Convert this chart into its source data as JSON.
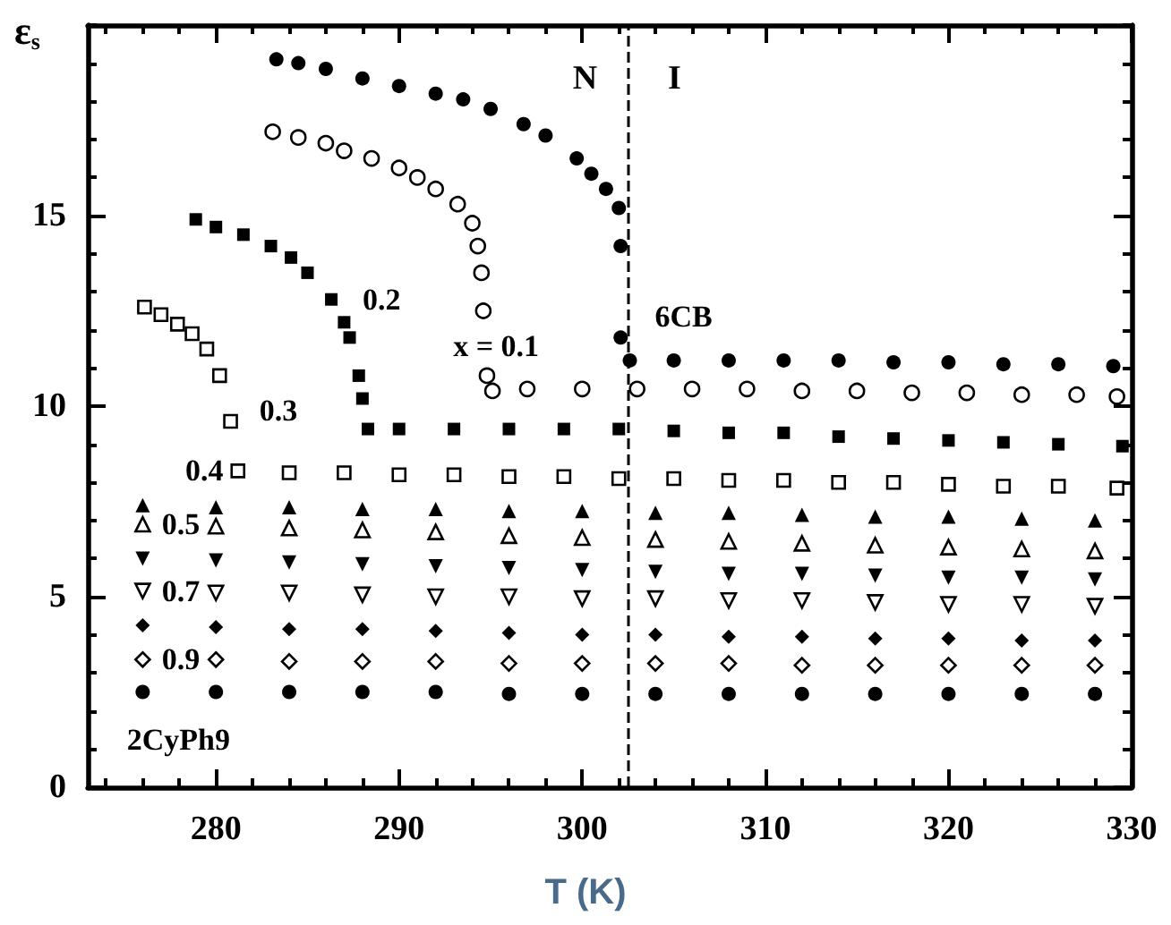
{
  "chart_data": {
    "type": "scatter",
    "xlabel": "T (K)",
    "ylabel": "ε$_{s}$",
    "xlim": [
      273,
      330
    ],
    "ylim": [
      0,
      20
    ],
    "xticks": [
      {
        "value": 274,
        "label": null
      },
      {
        "value": 276,
        "label": null
      },
      {
        "value": 278,
        "label": null
      },
      280,
      {
        "value": 282,
        "label": null
      },
      {
        "value": 284,
        "label": null
      },
      {
        "value": 286,
        "label": null
      },
      {
        "value": 288,
        "label": null
      },
      290,
      {
        "value": 292,
        "label": null
      },
      {
        "value": 294,
        "label": null
      },
      {
        "value": 296,
        "label": null
      },
      {
        "value": 298,
        "label": null
      },
      300,
      {
        "value": 302,
        "label": null
      },
      {
        "value": 304,
        "label": null
      },
      {
        "value": 306,
        "label": null
      },
      {
        "value": 308,
        "label": null
      },
      310,
      {
        "value": 312,
        "label": null
      },
      {
        "value": 314,
        "label": null
      },
      {
        "value": 316,
        "label": null
      },
      {
        "value": 318,
        "label": null
      },
      320,
      {
        "value": 322,
        "label": null
      },
      {
        "value": 324,
        "label": null
      },
      {
        "value": 326,
        "label": null
      },
      {
        "value": 328,
        "label": null
      },
      330
    ],
    "yticks": [
      0,
      {
        "value": 1,
        "label": null
      },
      {
        "value": 2,
        "label": null
      },
      {
        "value": 3,
        "label": null
      },
      {
        "value": 4,
        "label": null
      },
      5,
      {
        "value": 6,
        "label": null
      },
      {
        "value": 7,
        "label": null
      },
      {
        "value": 8,
        "label": null
      },
      {
        "value": 9,
        "label": null
      },
      10,
      {
        "value": 11,
        "label": null
      },
      {
        "value": 12,
        "label": null
      },
      {
        "value": 13,
        "label": null
      },
      {
        "value": 14,
        "label": null
      },
      15,
      {
        "value": 16,
        "label": null
      },
      {
        "value": 17,
        "label": null
      },
      {
        "value": 18,
        "label": null
      },
      {
        "value": 19,
        "label": null
      },
      {
        "value": 20,
        "label": null
      }
    ],
    "grid": false,
    "series": [
      {
        "name": "6CB",
        "color": "#000000",
        "marker": "circle",
        "x": [
          283.3,
          284.5,
          286,
          288,
          290,
          292,
          293.5,
          295,
          296.8,
          298,
          299.7,
          300.5,
          301.3,
          302,
          302.1,
          302.1,
          302.6,
          305,
          308,
          311,
          314,
          317,
          320,
          323,
          326,
          329
        ],
        "values": [
          19.1,
          19.0,
          18.85,
          18.6,
          18.4,
          18.2,
          18.05,
          17.8,
          17.4,
          17.1,
          16.5,
          16.1,
          15.7,
          15.2,
          14.2,
          11.8,
          11.2,
          11.2,
          11.2,
          11.2,
          11.2,
          11.15,
          11.15,
          11.1,
          11.1,
          11.05
        ]
      },
      {
        "name": "x = 0.1",
        "color": "#ffffff",
        "marker": "circle",
        "x": [
          283.1,
          284.5,
          286,
          287,
          288.5,
          290,
          291,
          292,
          293.2,
          294,
          294.3,
          294.5,
          294.6,
          294.8,
          295.1,
          297,
          300,
          303,
          306,
          309,
          312,
          315,
          318,
          321,
          324,
          327,
          329.2
        ],
        "values": [
          17.2,
          17.05,
          16.9,
          16.7,
          16.5,
          16.25,
          16.0,
          15.7,
          15.3,
          14.8,
          14.2,
          13.5,
          12.5,
          10.8,
          10.4,
          10.45,
          10.45,
          10.45,
          10.45,
          10.45,
          10.4,
          10.4,
          10.35,
          10.35,
          10.3,
          10.3,
          10.25
        ]
      },
      {
        "name": "0.2",
        "color": "#000000",
        "marker": "square",
        "x": [
          278.9,
          280,
          281.5,
          283,
          284.1,
          285,
          286.3,
          287,
          287.3,
          287.8,
          288,
          288.3,
          290,
          293,
          296,
          299,
          302,
          305,
          308,
          311,
          314,
          317,
          320,
          323,
          326,
          329.5
        ],
        "values": [
          14.9,
          14.7,
          14.5,
          14.2,
          13.9,
          13.5,
          12.8,
          12.2,
          11.8,
          10.8,
          10.2,
          9.4,
          9.4,
          9.4,
          9.4,
          9.4,
          9.4,
          9.35,
          9.3,
          9.3,
          9.2,
          9.15,
          9.1,
          9.05,
          9.0,
          8.95
        ]
      },
      {
        "name": "0.3",
        "color": "#ffffff",
        "marker": "square",
        "x": [
          276.1,
          277,
          277.9,
          278.7,
          279.5,
          280.2,
          280.8
        ],
        "values": [
          12.6,
          12.4,
          12.15,
          11.9,
          11.5,
          10.8,
          9.6
        ]
      },
      {
        "name": "0.4",
        "color": "#ffffff",
        "marker": "square",
        "x": [
          281.2,
          284,
          287,
          290,
          293,
          296,
          299,
          302,
          305,
          308,
          311,
          314,
          317,
          320,
          323,
          326,
          329.2
        ],
        "values": [
          8.3,
          8.25,
          8.25,
          8.2,
          8.2,
          8.15,
          8.15,
          8.1,
          8.1,
          8.05,
          8.05,
          8.0,
          8.0,
          7.95,
          7.9,
          7.9,
          7.85
        ]
      },
      {
        "color": "#000000",
        "marker": "triangle",
        "x": [
          276,
          280,
          284,
          288,
          292,
          296,
          300,
          304,
          308,
          312,
          316,
          320,
          324,
          328
        ],
        "values": [
          7.4,
          7.35,
          7.35,
          7.3,
          7.3,
          7.25,
          7.25,
          7.2,
          7.2,
          7.15,
          7.1,
          7.1,
          7.05,
          7.0
        ]
      },
      {
        "name": "0.5",
        "color": "#ffffff",
        "marker": "triangle",
        "x": [
          276,
          280,
          284,
          288,
          292,
          296,
          300,
          304,
          308,
          312,
          316,
          320,
          324,
          328
        ],
        "values": [
          6.9,
          6.85,
          6.8,
          6.75,
          6.7,
          6.6,
          6.55,
          6.5,
          6.45,
          6.4,
          6.35,
          6.3,
          6.25,
          6.2
        ]
      },
      {
        "color": "#000000",
        "marker": "triangle-down",
        "x": [
          276,
          280,
          284,
          288,
          292,
          296,
          300,
          304,
          308,
          312,
          316,
          320,
          324,
          328
        ],
        "values": [
          6.0,
          5.95,
          5.9,
          5.85,
          5.8,
          5.75,
          5.7,
          5.65,
          5.6,
          5.6,
          5.55,
          5.5,
          5.5,
          5.45
        ]
      },
      {
        "name": "0.7",
        "color": "#ffffff",
        "marker": "triangle-down",
        "x": [
          276,
          280,
          284,
          288,
          292,
          296,
          300,
          304,
          308,
          312,
          316,
          320,
          324,
          328
        ],
        "values": [
          5.15,
          5.1,
          5.1,
          5.05,
          5.0,
          5.0,
          4.95,
          4.95,
          4.9,
          4.9,
          4.85,
          4.8,
          4.8,
          4.75
        ]
      },
      {
        "color": "#000000",
        "marker": "diamond",
        "x": [
          276,
          280,
          284,
          288,
          292,
          296,
          300,
          304,
          308,
          312,
          316,
          320,
          324,
          328
        ],
        "values": [
          4.25,
          4.2,
          4.15,
          4.15,
          4.1,
          4.05,
          4.0,
          4.0,
          3.95,
          3.95,
          3.9,
          3.9,
          3.85,
          3.85
        ]
      },
      {
        "name": "0.9",
        "color": "#ffffff",
        "marker": "diamond",
        "x": [
          276,
          280,
          284,
          288,
          292,
          296,
          300,
          304,
          308,
          312,
          316,
          320,
          324,
          328
        ],
        "values": [
          3.35,
          3.35,
          3.3,
          3.3,
          3.3,
          3.25,
          3.25,
          3.25,
          3.25,
          3.2,
          3.2,
          3.2,
          3.2,
          3.2
        ]
      },
      {
        "name": "2CyPh9",
        "color": "#000000",
        "marker": "circle",
        "x": [
          276,
          280,
          284,
          288,
          292,
          296,
          300,
          304,
          308,
          312,
          316,
          320,
          324,
          328
        ],
        "values": [
          2.5,
          2.5,
          2.5,
          2.5,
          2.5,
          2.45,
          2.45,
          2.45,
          2.45,
          2.45,
          2.45,
          2.45,
          2.45,
          2.45
        ]
      }
    ],
    "ref_lines": [
      {
        "axis": "x",
        "value": 302.5,
        "line_style": "dashed",
        "color": "#000000"
      }
    ],
    "annotations": [
      "N",
      "I"
    ]
  }
}
